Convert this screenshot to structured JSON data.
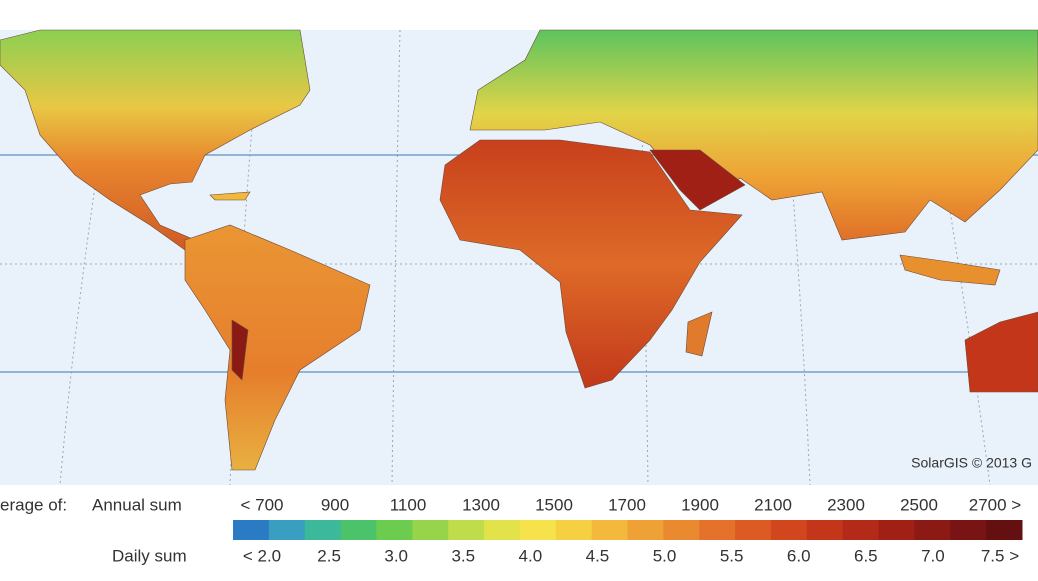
{
  "credit": "SolarGIS © 2013 G",
  "legend": {
    "title": "erage of:",
    "annual_label": "Annual sum",
    "annual_ticks": [
      "< 700",
      "900",
      "1100",
      "1300",
      "1500",
      "1700",
      "1900",
      "2100",
      "2300",
      "2500",
      "2700 >"
    ],
    "daily_label": "Daily sum",
    "daily_ticks": [
      "< 2.0",
      "2.5",
      "3.0",
      "3.5",
      "4.0",
      "4.5",
      "5.0",
      "5.5",
      "6.0",
      "6.5",
      "7.0",
      "7.5 >"
    ],
    "colors": [
      "#2b7bc4",
      "#3a9ec0",
      "#3cb89a",
      "#4cc26a",
      "#6ccc50",
      "#96d44c",
      "#bfdc4a",
      "#e2e24a",
      "#f6e24a",
      "#f6d043",
      "#f2b93c",
      "#eea236",
      "#ea8a30",
      "#e4722a",
      "#dc5a24",
      "#d2461e",
      "#c4361a",
      "#b42a18",
      "#a02016",
      "#8c1a14",
      "#781414",
      "#641010"
    ]
  }
}
